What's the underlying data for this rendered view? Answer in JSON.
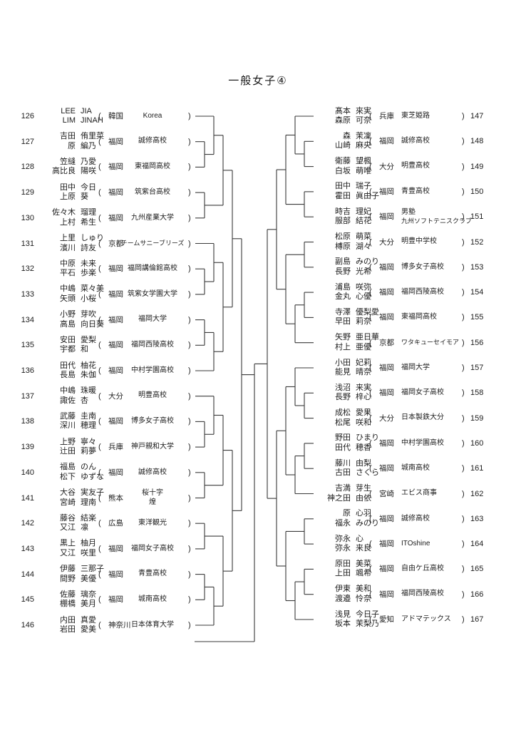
{
  "title": "一般女子④",
  "paren_open": "(",
  "paren_close": ")",
  "line_color": "#3a3a3a",
  "bracket": {
    "left_entries": [
      {
        "seed": "126",
        "p1": [
          "LEE",
          "JIA"
        ],
        "p2": [
          "LIM",
          "JINAH"
        ],
        "pref": "韓国",
        "team": [
          "Korea"
        ]
      },
      {
        "seed": "127",
        "p1": [
          "吉田",
          "侑里菜"
        ],
        "p2": [
          "原",
          "編乃"
        ],
        "pref": "福岡",
        "team": [
          "誠修高校"
        ]
      },
      {
        "seed": "128",
        "p1": [
          "笠縫",
          "乃愛"
        ],
        "p2": [
          "高比良",
          "陽咲"
        ],
        "pref": "福岡",
        "team": [
          "東福岡高校"
        ]
      },
      {
        "seed": "129",
        "p1": [
          "田中",
          "今日"
        ],
        "p2": [
          "上原",
          "葵"
        ],
        "pref": "福岡",
        "team": [
          "筑紫台高校"
        ]
      },
      {
        "seed": "130",
        "p1": [
          "佐々木",
          "瑠理"
        ],
        "p2": [
          "上村",
          "希生"
        ],
        "pref": "福岡",
        "team": [
          "九州産業大学"
        ]
      },
      {
        "seed": "131",
        "p1": [
          "上里",
          "しゅり"
        ],
        "p2": [
          "濱川",
          "詩友"
        ],
        "pref": "京都",
        "team": [
          "チームサニーブリーズ"
        ]
      },
      {
        "seed": "132",
        "p1": [
          "中原",
          "未来"
        ],
        "p2": [
          "平石",
          "歩楽"
        ],
        "pref": "福岡",
        "team": [
          "福岡講倫館高校"
        ]
      },
      {
        "seed": "133",
        "p1": [
          "中嶋",
          "菜々美"
        ],
        "p2": [
          "矢頭",
          "小桜"
        ],
        "pref": "福岡",
        "team": [
          "筑紫女学園大学"
        ]
      },
      {
        "seed": "134",
        "p1": [
          "小野",
          "芽吹"
        ],
        "p2": [
          "高島",
          "向日葵"
        ],
        "pref": "福岡",
        "team": [
          "福岡大学"
        ]
      },
      {
        "seed": "135",
        "p1": [
          "安田",
          "愛梨"
        ],
        "p2": [
          "宇都",
          "和"
        ],
        "pref": "福岡",
        "team": [
          "福岡西陵高校"
        ]
      },
      {
        "seed": "136",
        "p1": [
          "田代",
          "柚花"
        ],
        "p2": [
          "長島",
          "朱伽"
        ],
        "pref": "福岡",
        "team": [
          "中村学園高校"
        ]
      },
      {
        "seed": "137",
        "p1": [
          "中嶋",
          "珠暖"
        ],
        "p2": [
          "諏佐",
          "杏"
        ],
        "pref": "大分",
        "team": [
          "明豊高校"
        ]
      },
      {
        "seed": "138",
        "p1": [
          "武藤",
          "圭南"
        ],
        "p2": [
          "深川",
          "穂理"
        ],
        "pref": "福岡",
        "team": [
          "博多女子高校"
        ]
      },
      {
        "seed": "139",
        "p1": [
          "上野",
          "寧々"
        ],
        "p2": [
          "辻田",
          "莉夢"
        ],
        "pref": "兵庫",
        "team": [
          "神戸親和大学"
        ]
      },
      {
        "seed": "140",
        "p1": [
          "福島",
          "のん"
        ],
        "p2": [
          "松下",
          "ゆずな"
        ],
        "pref": "福岡",
        "team": [
          "誠修高校"
        ]
      },
      {
        "seed": "141",
        "p1": [
          "大谷",
          "実友子"
        ],
        "p2": [
          "宮崎",
          "理南"
        ],
        "pref": "熊本",
        "team": [
          "桜十字",
          "煌"
        ]
      },
      {
        "seed": "142",
        "p1": [
          "藤谷",
          "結楽"
        ],
        "p2": [
          "又江",
          "凛"
        ],
        "pref": "広島",
        "team": [
          "東洋観光"
        ]
      },
      {
        "seed": "143",
        "p1": [
          "黒上",
          "柚月"
        ],
        "p2": [
          "又江",
          "咲里"
        ],
        "pref": "福岡",
        "team": [
          "福岡女子高校"
        ]
      },
      {
        "seed": "144",
        "p1": [
          "伊藤",
          "三那子"
        ],
        "p2": [
          "間野",
          "美優"
        ],
        "pref": "福岡",
        "team": [
          "青豊高校"
        ]
      },
      {
        "seed": "145",
        "p1": [
          "佐藤",
          "璃奈"
        ],
        "p2": [
          "棚橋",
          "美月"
        ],
        "pref": "福岡",
        "team": [
          "城南高校"
        ]
      },
      {
        "seed": "146",
        "p1": [
          "内田",
          "真愛"
        ],
        "p2": [
          "岩田",
          "愛美"
        ],
        "pref": "神奈川",
        "team": [
          "日本体育大学"
        ]
      }
    ],
    "right_entries": [
      {
        "seed": "147",
        "p1": [
          "髙本",
          "來実"
        ],
        "p2": [
          "森原",
          "可奈"
        ],
        "pref": "兵庫",
        "team": [
          "東芝姫路"
        ]
      },
      {
        "seed": "148",
        "p1": [
          "森",
          "茉凜"
        ],
        "p2": [
          "山崎",
          "麻央"
        ],
        "pref": "福岡",
        "team": [
          "誠修高校"
        ]
      },
      {
        "seed": "149",
        "p1": [
          "衛藤",
          "望楓"
        ],
        "p2": [
          "白坂",
          "萌唯"
        ],
        "pref": "大分",
        "team": [
          "明豊高校"
        ]
      },
      {
        "seed": "150",
        "p1": [
          "田中",
          "瑞子"
        ],
        "p2": [
          "霍田",
          "眞由子"
        ],
        "pref": "福岡",
        "team": [
          "青豊高校"
        ]
      },
      {
        "seed": "151",
        "p1": [
          "時吉",
          "理妃"
        ],
        "p2": [
          "服部",
          "結花"
        ],
        "pref": "福岡",
        "team": [
          "男塾",
          "九州ソフトテニスクラブ"
        ]
      },
      {
        "seed": "152",
        "p1": [
          "松原",
          "萌菜"
        ],
        "p2": [
          "榑原",
          "湖々"
        ],
        "pref": "大分",
        "team": [
          "明豊中学校"
        ]
      },
      {
        "seed": "153",
        "p1": [
          "副島",
          "みのり"
        ],
        "p2": [
          "長野",
          "光希"
        ],
        "pref": "福岡",
        "team": [
          "博多女子高校"
        ]
      },
      {
        "seed": "154",
        "p1": [
          "浦島",
          "咲弥"
        ],
        "p2": [
          "金丸",
          "心優"
        ],
        "pref": "福岡",
        "team": [
          "福岡西陵高校"
        ]
      },
      {
        "seed": "155",
        "p1": [
          "寺澤",
          "優梨愛"
        ],
        "p2": [
          "早田",
          "莉奈"
        ],
        "pref": "福岡",
        "team": [
          "東福岡高校"
        ]
      },
      {
        "seed": "156",
        "p1": [
          "矢野",
          "亜日華"
        ],
        "p2": [
          "村上",
          "亜優"
        ],
        "pref": "京都",
        "team": [
          "ワタキューセイモア"
        ]
      },
      {
        "seed": "157",
        "p1": [
          "小田",
          "妃莉"
        ],
        "p2": [
          "能見",
          "晴奈"
        ],
        "pref": "福岡",
        "team": [
          "福岡大学"
        ]
      },
      {
        "seed": "158",
        "p1": [
          "浅沼",
          "来実"
        ],
        "p2": [
          "長野",
          "梓心"
        ],
        "pref": "福岡",
        "team": [
          "福岡女子高校"
        ]
      },
      {
        "seed": "159",
        "p1": [
          "成松",
          "愛果"
        ],
        "p2": [
          "松尾",
          "咲和"
        ],
        "pref": "大分",
        "team": [
          "日本製鉄大分"
        ]
      },
      {
        "seed": "160",
        "p1": [
          "野田",
          "ひまり"
        ],
        "p2": [
          "田代",
          "穂香"
        ],
        "pref": "福岡",
        "team": [
          "中村学園高校"
        ]
      },
      {
        "seed": "161",
        "p1": [
          "藤川",
          "由梨"
        ],
        "p2": [
          "古田",
          "さくら"
        ],
        "pref": "福岡",
        "team": [
          "城南高校"
        ]
      },
      {
        "seed": "162",
        "p1": [
          "吉満",
          "芽生"
        ],
        "p2": [
          "神之田",
          "由依"
        ],
        "pref": "宮崎",
        "team": [
          "エビス商事"
        ]
      },
      {
        "seed": "163",
        "p1": [
          "原",
          "心羽"
        ],
        "p2": [
          "福永",
          "みのり"
        ],
        "pref": "福岡",
        "team": [
          "誠修高校"
        ]
      },
      {
        "seed": "164",
        "p1": [
          "弥永",
          "心"
        ],
        "p2": [
          "弥永",
          "来良"
        ],
        "pref": "福岡",
        "team": [
          "ITOshine"
        ]
      },
      {
        "seed": "165",
        "p1": [
          "原田",
          "美菜"
        ],
        "p2": [
          "上田",
          "颯希"
        ],
        "pref": "福岡",
        "team": [
          "自由ケ丘高校"
        ]
      },
      {
        "seed": "166",
        "p1": [
          "伊東",
          "美和"
        ],
        "p2": [
          "渡邉",
          "怜奈"
        ],
        "pref": "福岡",
        "team": [
          "福岡西陵高校"
        ]
      },
      {
        "seed": "167",
        "p1": [
          "浅見",
          "今日子"
        ],
        "p2": [
          "坂本",
          "茉梨乃"
        ],
        "pref": "愛知",
        "team": [
          "アドマテックス"
        ]
      }
    ],
    "left_tree": [
      [
        [
          [
            0,
            [
              1,
              2
            ]
          ],
          [
            3,
            4
          ]
        ],
        [
          [
            5,
            [
              6,
              7
            ]
          ],
          [
            [
              8,
              9
            ],
            10
          ]
        ]
      ],
      [
        [
          [
            11,
            [
              12,
              13
            ]
          ],
          [
            14,
            15
          ]
        ],
        [
          [
            16,
            17
          ],
          [
            [
              18,
              19
            ],
            20
          ]
        ]
      ]
    ],
    "right_tree": [
      [
        [
          [
            0,
            [
              1,
              2
            ]
          ],
          [
            3,
            4
          ]
        ],
        [
          [
            5,
            6
          ],
          [
            [
              7,
              8
            ],
            9
          ]
        ]
      ],
      [
        [
          [
            10,
            [
              11,
              12
            ]
          ],
          [
            [
              13,
              14
            ],
            15
          ]
        ],
        [
          [
            16,
            17
          ],
          [
            [
              18,
              19
            ],
            20
          ]
        ]
      ]
    ]
  }
}
